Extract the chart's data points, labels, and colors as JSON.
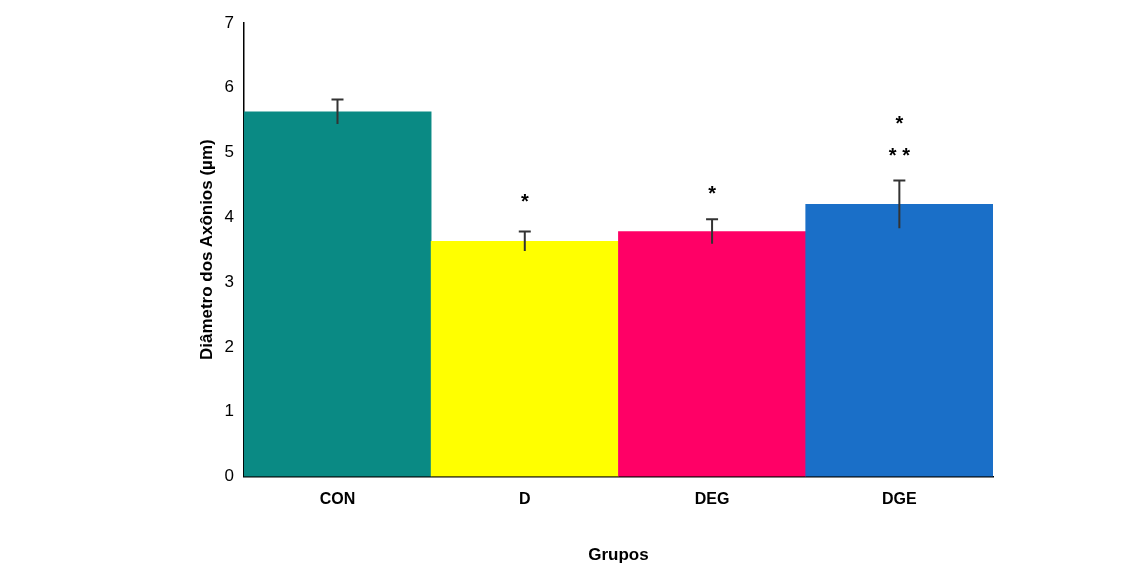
{
  "chart_data": {
    "type": "bar",
    "xlabel": "Grupos",
    "ylabel": "Diâmetro dos Axônios (µm)",
    "categories": [
      "CON",
      "D",
      "DEG",
      "DGE"
    ],
    "values": [
      5.63,
      3.63,
      3.78,
      4.2
    ],
    "colors": [
      "#0a8a84",
      "#ffff00",
      "#ff0066",
      "#1a6fc8"
    ],
    "errors": [
      0.19,
      0.15,
      0.19,
      0.37
    ],
    "ylim": [
      0,
      7
    ],
    "yticks": [
      0,
      1,
      2,
      3,
      4,
      5,
      6,
      7
    ],
    "annotations": [
      "*",
      "*",
      "*",
      "**"
    ],
    "grid": false,
    "legend": false
  }
}
